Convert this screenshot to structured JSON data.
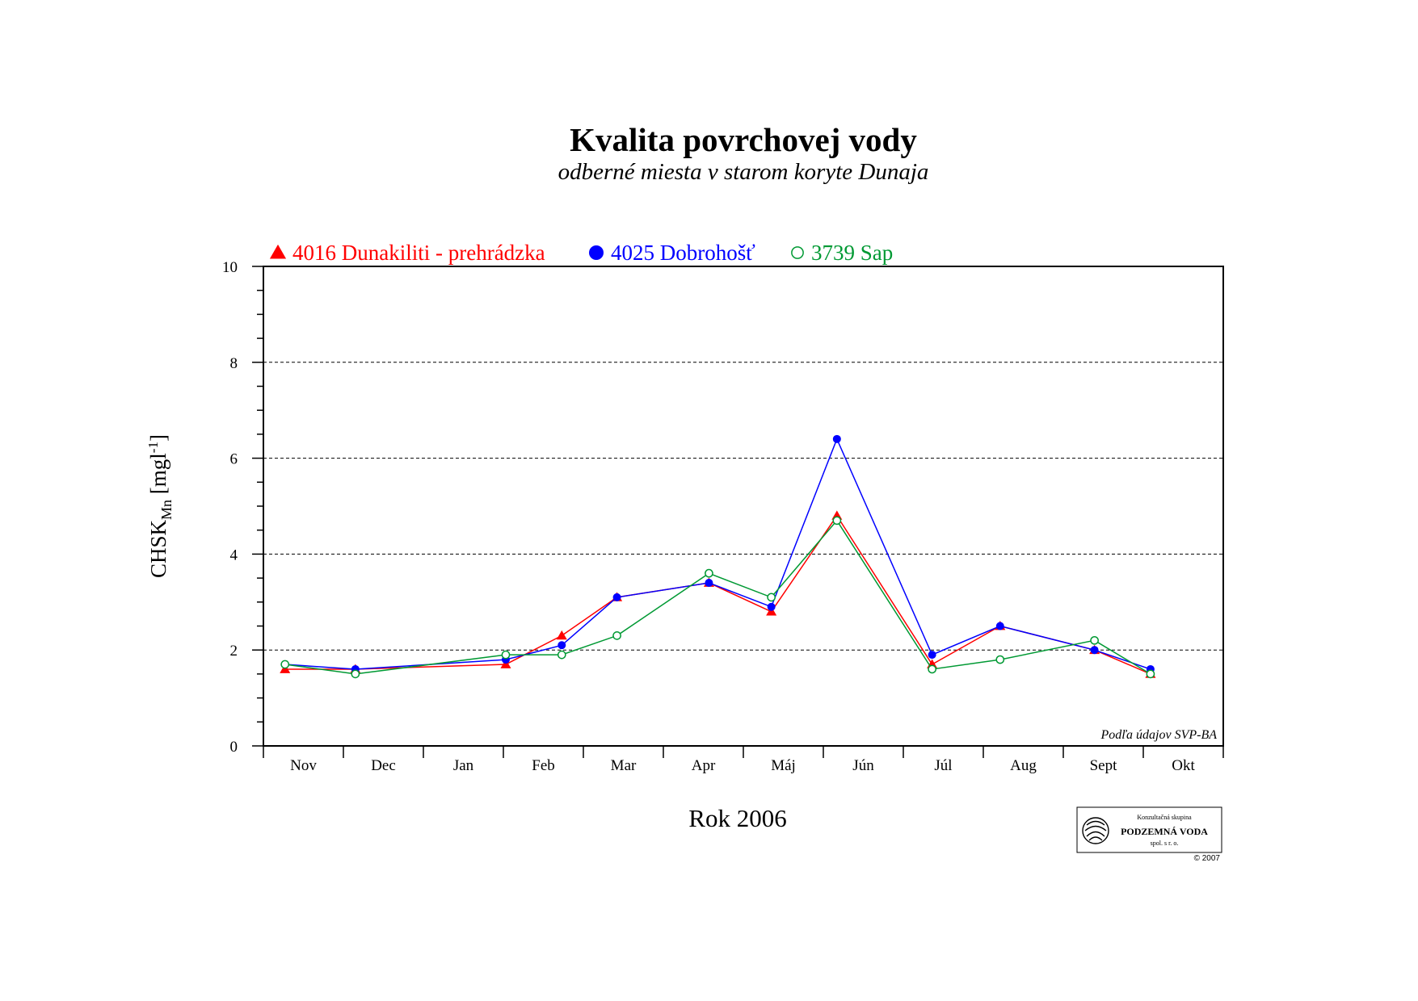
{
  "chart_data": {
    "type": "line",
    "title": "Kvalita povrchovej vody",
    "subtitle": "odberné miesta v starom koryte Dunaja",
    "xlabel": "Rok 2006",
    "ylabel_main": "CHSK",
    "ylabel_sub": "Mn",
    "ylabel_unit_open": " [mgl",
    "ylabel_unit_sup": "-1",
    "ylabel_unit_close": "]",
    "ylim": [
      0,
      10
    ],
    "xlim": [
      0,
      12
    ],
    "y_ticks": [
      "0",
      "2",
      "4",
      "6",
      "8",
      "10"
    ],
    "y_tick_values": [
      0,
      2,
      4,
      6,
      8,
      10
    ],
    "grid_lines_y": [
      2,
      4,
      6,
      8
    ],
    "categories": [
      "Nov",
      "Dec",
      "Jan",
      "Feb",
      "Mar",
      "Apr",
      "Máj",
      "Jún",
      "Júl",
      "Aug",
      "Sept",
      "Okt"
    ],
    "legend_placement": "top-left above plot",
    "series": [
      {
        "name": "4016 Dunakiliti - prehrádzka",
        "color": "#ff0000",
        "marker": "triangle-filled",
        "x": [
          0.27,
          1.15,
          3.03,
          3.73,
          4.42,
          5.57,
          6.35,
          7.17,
          8.36,
          9.21,
          10.39,
          11.09
        ],
        "y": [
          1.6,
          1.6,
          1.7,
          2.3,
          3.1,
          3.4,
          2.8,
          4.8,
          1.7,
          2.5,
          2.0,
          1.5
        ]
      },
      {
        "name": "4025 Dobrohošť",
        "color": "#0000ff",
        "marker": "circle-filled",
        "x": [
          0.27,
          1.15,
          3.03,
          3.73,
          4.42,
          5.57,
          6.35,
          7.17,
          8.36,
          9.21,
          10.39,
          11.09
        ],
        "y": [
          1.7,
          1.6,
          1.8,
          2.1,
          3.1,
          3.4,
          2.9,
          6.4,
          1.9,
          2.5,
          2.0,
          1.6
        ]
      },
      {
        "name": "3739 Sap",
        "color": "#009933",
        "marker": "circle-open",
        "x": [
          0.27,
          1.15,
          3.03,
          3.73,
          4.42,
          5.57,
          6.35,
          7.17,
          8.36,
          9.21,
          10.39,
          11.09
        ],
        "y": [
          1.7,
          1.5,
          1.9,
          1.9,
          2.3,
          3.6,
          3.1,
          4.7,
          1.6,
          1.8,
          2.2,
          1.5
        ]
      }
    ],
    "annotation": "Podľa údajov SVP-BA"
  },
  "logo": {
    "line1": "Konzultačná skupina",
    "line2": "PODZEMNÁ VODA",
    "line3": "spol. s r. o.",
    "copyright": "© 2007"
  }
}
